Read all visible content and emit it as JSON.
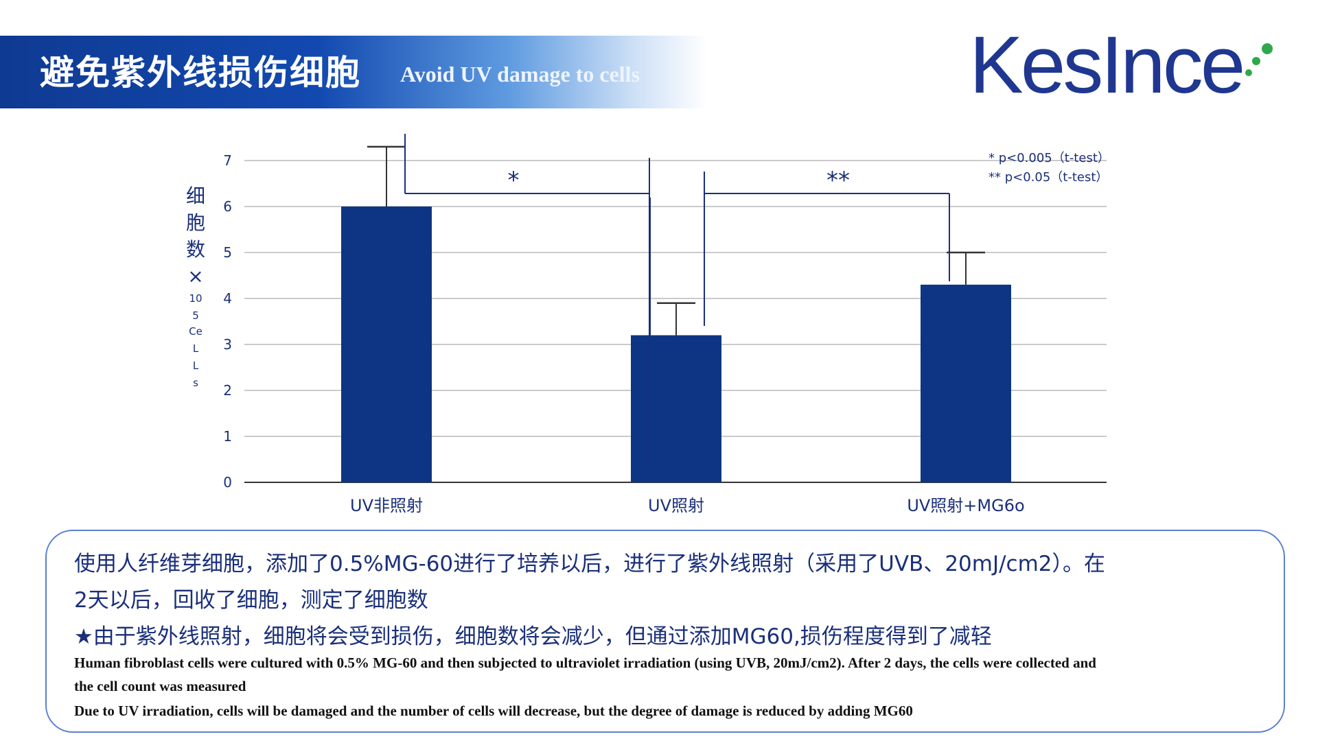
{
  "header": {
    "title_cn": "避免紫外线损伤细胞",
    "title_en": "Avoid UV damage to cells"
  },
  "logo": {
    "text": "KesInce"
  },
  "colors": {
    "bar": "#0e3583",
    "header_blue": "#1249b0",
    "logo_green": "#2fa84a",
    "line": "#1a2f7a"
  },
  "chart_data": {
    "type": "bar",
    "categories": [
      "UV非照射",
      "UV照射",
      "UV照射+MG6o"
    ],
    "values": [
      6.0,
      3.2,
      4.3
    ],
    "error_upper": [
      7.3,
      3.9,
      5.0
    ],
    "ylim": [
      0,
      7
    ],
    "yticks": [
      "0",
      "1",
      "2",
      "3",
      "4",
      "5",
      "6",
      "7"
    ],
    "ylabel_lines": [
      "细",
      "胞",
      "数",
      "×",
      "10",
      "5",
      "Ce",
      "L",
      "L",
      "s"
    ],
    "grid": true,
    "significance": [
      {
        "from": 0,
        "to": 1,
        "label": "*"
      },
      {
        "from": 1,
        "to": 2,
        "label": "**"
      }
    ],
    "legend_notes": [
      "*   p<0.005（t-test）",
      "**  p<0.05（t-test）"
    ],
    "legend_position": "top-right"
  },
  "description": {
    "cn_line1": "使用人纤维芽细胞，添加了0.5%MG-60进行了培养以后，进行了紫外线照射（采用了UVB、20mJ/cm2）。在",
    "cn_line2": "2天以后，回收了细胞，测定了细胞数",
    "cn_line3": "★由于紫外线照射，细胞将会受到损伤，细胞数将会减少，但通过添加MG60,损伤程度得到了减轻",
    "en_line1": "Human fibroblast cells were cultured with 0.5% MG-60 and then subjected to ultraviolet irradiation (using UVB, 20mJ/cm2). After 2 days, the cells were collected and",
    "en_line2": "the cell count was measured",
    "en_line3": "Due to UV irradiation, cells will be damaged and the number of cells will decrease, but the degree of damage is reduced by adding MG60"
  }
}
